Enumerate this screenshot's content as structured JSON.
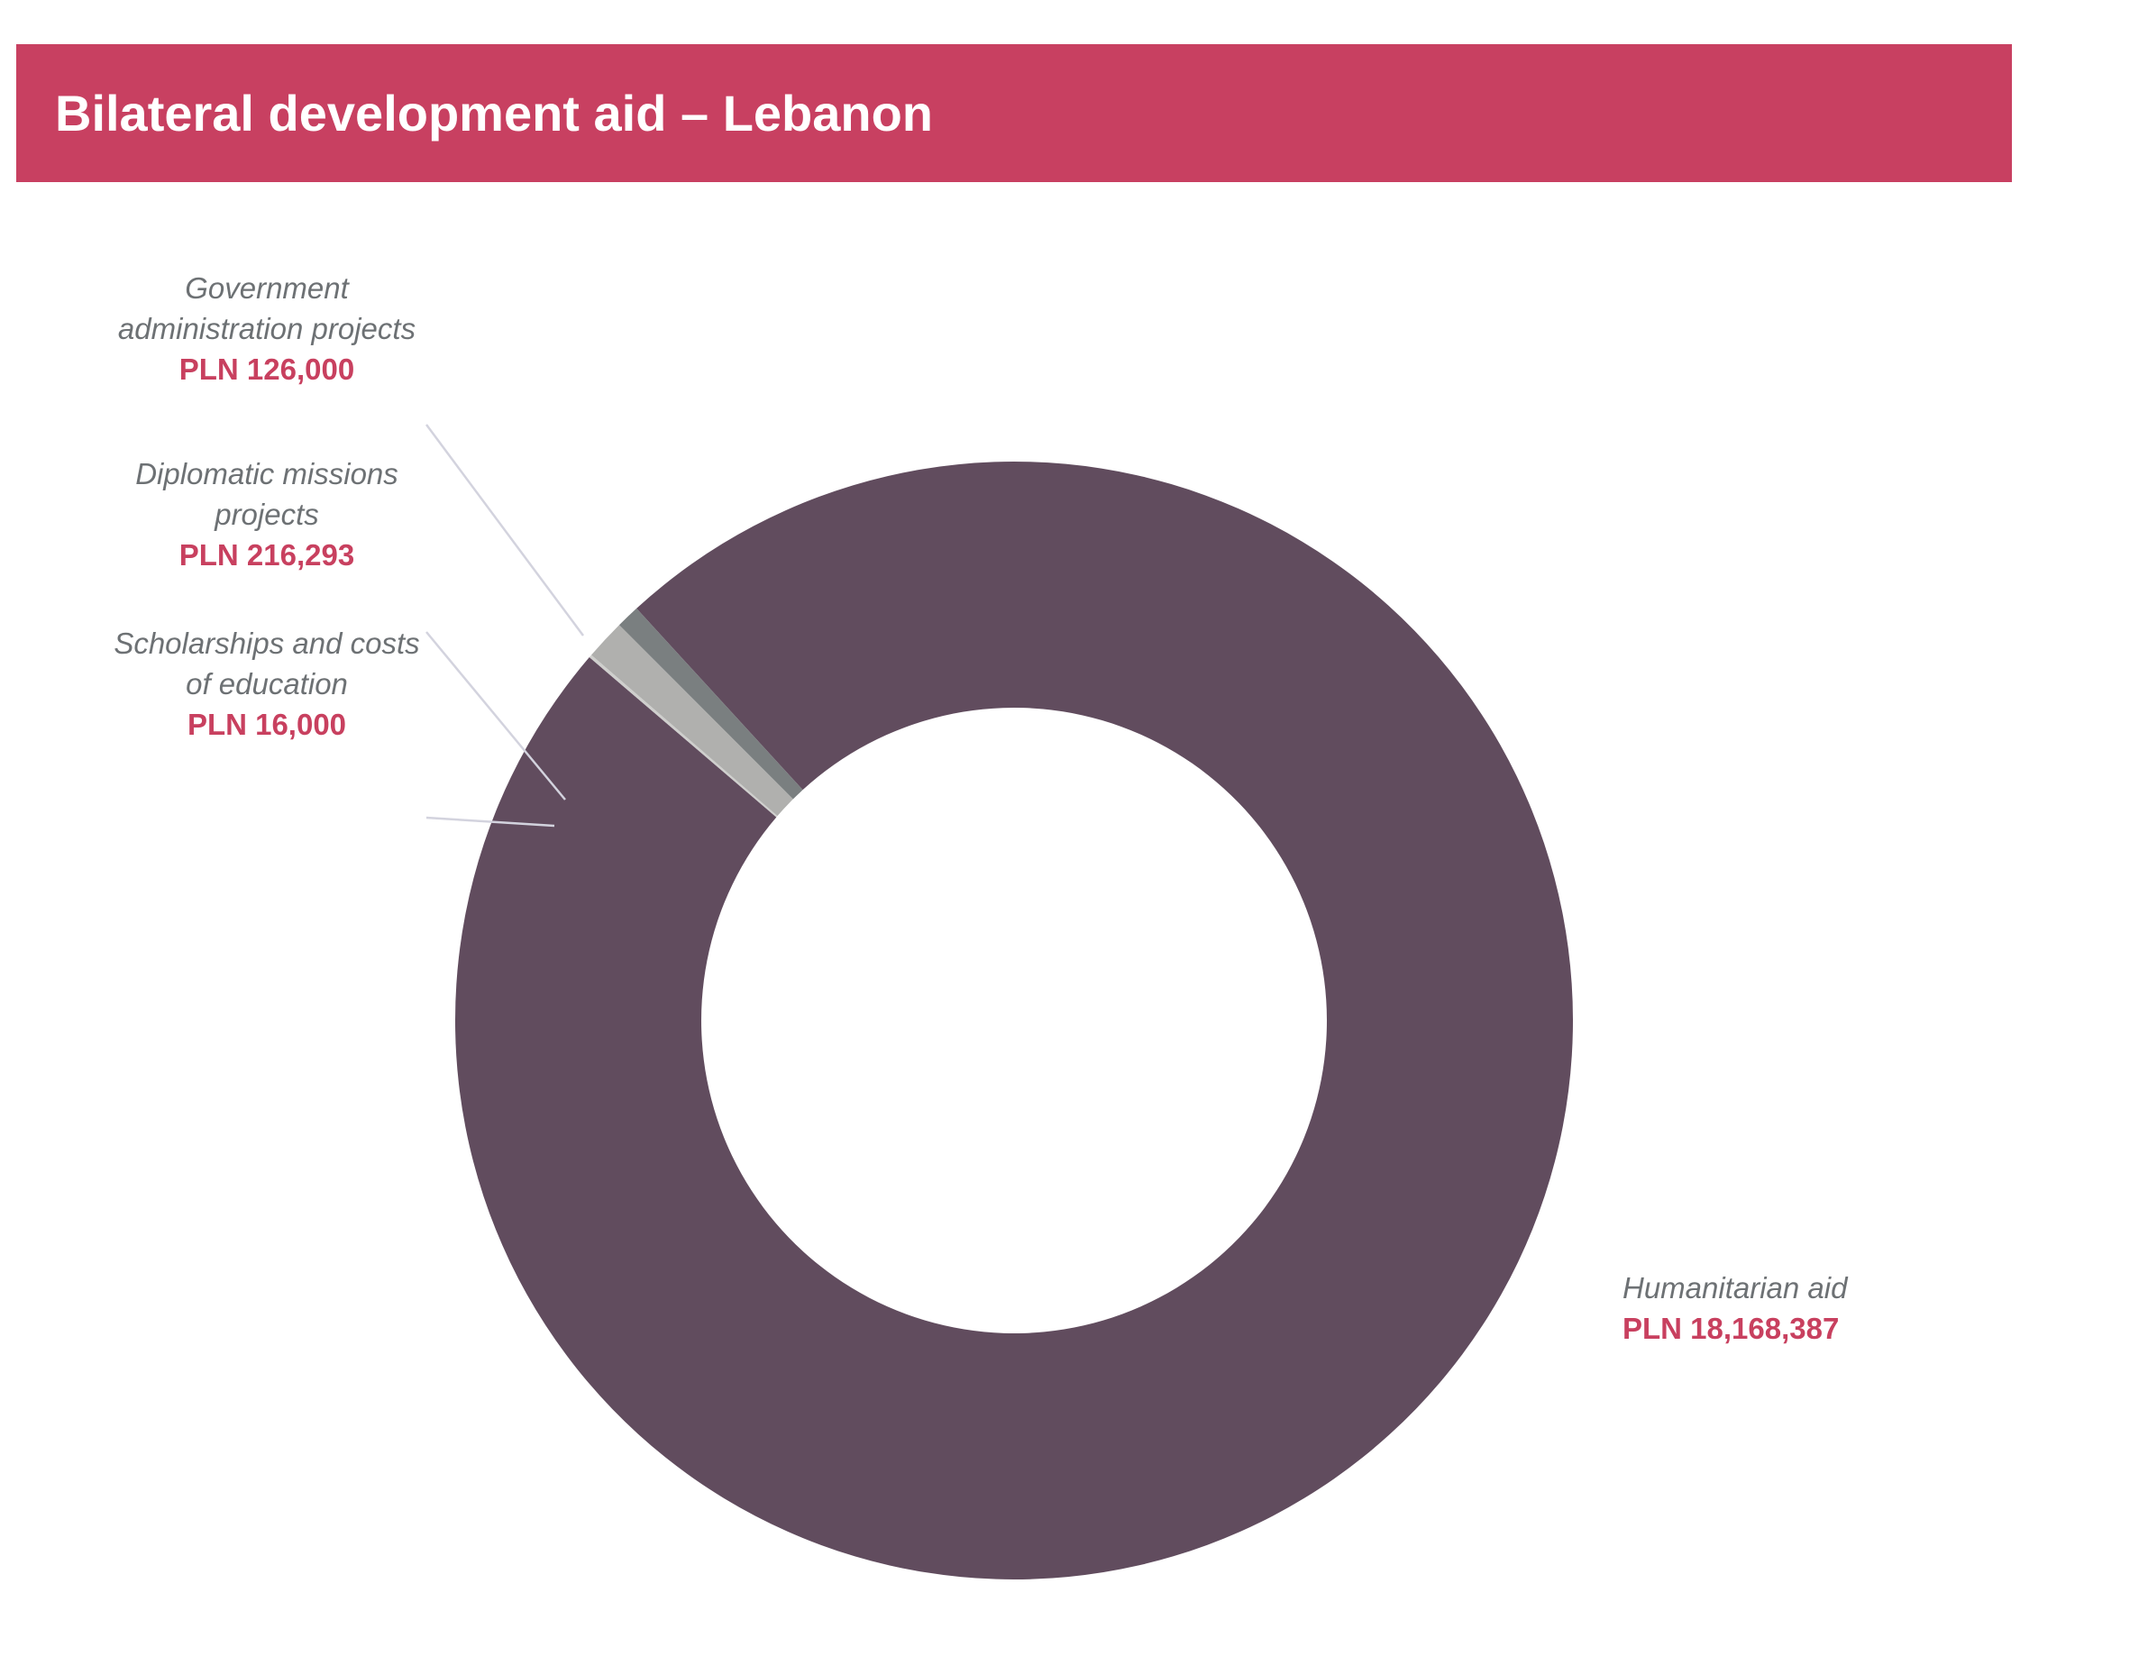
{
  "header": {
    "title": "Bilateral development aid – Lebanon"
  },
  "chart_data": {
    "type": "pie",
    "variant": "donut",
    "title": "Bilateral development aid – Lebanon",
    "currency": "PLN",
    "slices": [
      {
        "name_lines": [
          "Humanitarian aid"
        ],
        "value": 18168387,
        "value_label": "PLN 18,168,387",
        "color": "#614c5e"
      },
      {
        "name_lines": [
          "Scholarships and costs",
          "of education"
        ],
        "value": 16000,
        "value_label": "PLN 16,000",
        "color": "#cfcfcd"
      },
      {
        "name_lines": [
          "Diplomatic missions",
          "projects"
        ],
        "value": 216293,
        "value_label": "PLN 216,293",
        "color": "#b0b0ae"
      },
      {
        "name_lines": [
          "Government",
          "administration projects"
        ],
        "value": 126000,
        "value_label": "PLN 126,000",
        "color": "#7a7f80"
      }
    ]
  }
}
